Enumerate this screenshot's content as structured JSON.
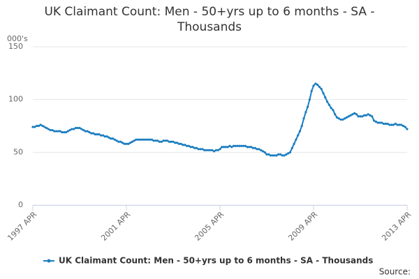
{
  "chart_data": {
    "type": "line",
    "title": "UK Claimant Count: Men - 50+yrs up to 6 months - SA - Thousands",
    "y_label": "000's",
    "source": "Source:",
    "categories": [
      "1997 APR",
      null,
      null,
      null,
      null,
      null,
      null,
      null,
      null,
      null,
      null,
      null,
      null,
      null,
      null,
      null,
      null,
      null,
      null,
      null,
      null,
      null,
      null,
      null,
      null,
      null,
      null,
      null,
      null,
      null,
      null,
      null,
      null,
      null,
      null,
      null,
      null,
      null,
      null,
      null,
      null,
      null,
      null,
      null,
      null,
      null,
      null,
      null,
      "2001 APR",
      null,
      null,
      null,
      null,
      null,
      null,
      null,
      null,
      null,
      null,
      null,
      null,
      null,
      null,
      null,
      null,
      null,
      null,
      null,
      null,
      null,
      null,
      null,
      null,
      null,
      null,
      null,
      null,
      null,
      null,
      null,
      null,
      null,
      null,
      null,
      null,
      null,
      null,
      null,
      null,
      null,
      null,
      null,
      null,
      null,
      null,
      null,
      "2005 APR",
      null,
      null,
      null,
      null,
      null,
      null,
      null,
      null,
      null,
      null,
      null,
      null,
      null,
      null,
      null,
      null,
      null,
      null,
      null,
      null,
      null,
      null,
      null,
      null,
      null,
      null,
      null,
      null,
      null,
      null,
      null,
      null,
      null,
      null,
      null,
      null,
      null,
      null,
      null,
      null,
      null,
      null,
      null,
      null,
      null,
      null,
      null,
      "2009 APR",
      null,
      null,
      null,
      null,
      null,
      null,
      null,
      null,
      null,
      null,
      null,
      null,
      null,
      null,
      null,
      null,
      null,
      null,
      null,
      null,
      null,
      null,
      null,
      null,
      null,
      null,
      null,
      null,
      null,
      null,
      null,
      null,
      null,
      null,
      null,
      null,
      null,
      null,
      null,
      null,
      null,
      null,
      null,
      null,
      null,
      null,
      null,
      "2013 APR"
    ],
    "series": [
      {
        "name": "UK Claimant Count: Men - 50+yrs up to 6 months - SA - Thousands",
        "color": "#1a7dc0",
        "values": [
          74,
          74,
          75,
          75,
          76,
          75,
          74,
          73,
          72,
          71,
          71,
          70,
          70,
          70,
          70,
          69,
          69,
          69,
          70,
          71,
          72,
          72,
          73,
          73,
          73,
          72,
          71,
          70,
          70,
          69,
          68,
          68,
          67,
          67,
          67,
          66,
          66,
          65,
          65,
          64,
          63,
          63,
          62,
          61,
          60,
          60,
          59,
          58,
          58,
          58,
          59,
          60,
          61,
          62,
          62,
          62,
          62,
          62,
          62,
          62,
          62,
          62,
          61,
          61,
          61,
          60,
          60,
          61,
          61,
          61,
          60,
          60,
          60,
          59,
          59,
          58,
          58,
          57,
          57,
          56,
          56,
          55,
          55,
          54,
          54,
          53,
          53,
          53,
          52,
          52,
          52,
          52,
          52,
          51,
          52,
          52,
          53,
          55,
          55,
          55,
          55,
          56,
          55,
          56,
          56,
          56,
          56,
          56,
          56,
          56,
          55,
          55,
          55,
          54,
          54,
          53,
          53,
          52,
          51,
          50,
          48,
          48,
          47,
          47,
          47,
          47,
          48,
          48,
          47,
          47,
          48,
          49,
          50,
          54,
          58,
          62,
          66,
          70,
          75,
          82,
          88,
          93,
          100,
          108,
          113,
          115,
          114,
          112,
          110,
          106,
          102,
          98,
          95,
          92,
          90,
          86,
          83,
          82,
          81,
          81,
          82,
          83,
          84,
          85,
          86,
          87,
          86,
          84,
          84,
          84,
          85,
          85,
          86,
          85,
          84,
          80,
          79,
          78,
          78,
          78,
          77,
          77,
          77,
          76,
          76,
          76,
          77,
          76,
          76,
          76,
          75,
          74,
          72
        ]
      }
    ],
    "ylim": [
      0,
      150
    ],
    "yticks": [
      0,
      50,
      100,
      150
    ],
    "grid": true
  }
}
